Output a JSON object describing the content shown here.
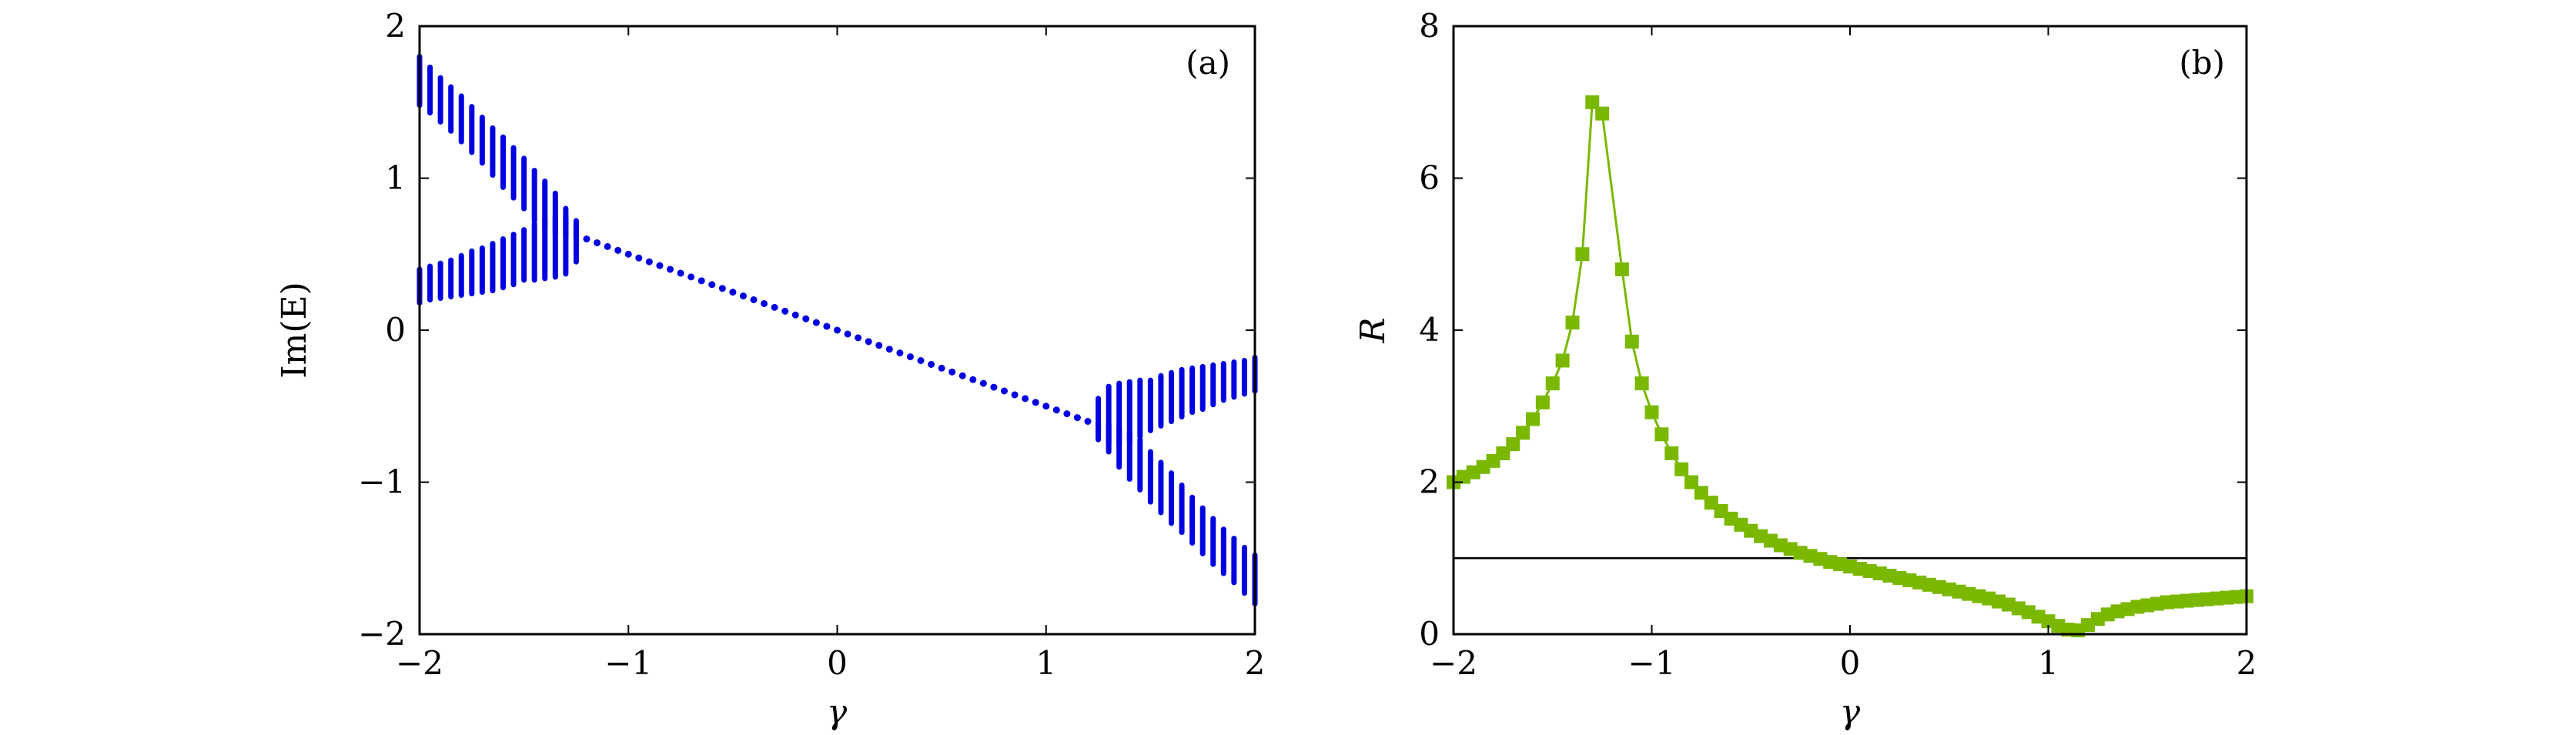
{
  "chart_data": [
    {
      "panel_label": "(a)",
      "type": "scatter",
      "xlabel": "γ",
      "ylabel": "Im(E)",
      "xlim": [
        -2,
        2
      ],
      "ylim": [
        -2,
        2
      ],
      "xticks": [
        -2,
        -1,
        0,
        1,
        2
      ],
      "yticks": [
        -2,
        -1,
        0,
        1,
        2
      ],
      "xtick_labels": [
        "−2",
        "−1",
        "0",
        "1",
        "2"
      ],
      "ytick_labels": [
        "−2",
        "−1",
        "0",
        "1",
        "2"
      ],
      "color": "#0000e0",
      "series": [
        {
          "style": "single-value dots",
          "x": [
            -1.2,
            -1.15,
            -1.1,
            -1.05,
            -1.0,
            -0.95,
            -0.9,
            -0.85,
            -0.8,
            -0.75,
            -0.7,
            -0.65,
            -0.6,
            -0.55,
            -0.5,
            -0.45,
            -0.4,
            -0.35,
            -0.3,
            -0.25,
            -0.2,
            -0.15,
            -0.1,
            -0.05,
            0.0,
            0.05,
            0.1,
            0.15,
            0.2,
            0.25,
            0.3,
            0.35,
            0.4,
            0.45,
            0.5,
            0.55,
            0.6,
            0.65,
            0.7,
            0.75,
            0.8,
            0.85,
            0.9,
            0.95,
            1.0,
            1.05,
            1.1,
            1.15,
            1.2
          ],
          "y": [
            0.6,
            0.575,
            0.55,
            0.525,
            0.5,
            0.475,
            0.45,
            0.425,
            0.4,
            0.375,
            0.35,
            0.325,
            0.3,
            0.275,
            0.25,
            0.225,
            0.2,
            0.175,
            0.15,
            0.125,
            0.1,
            0.075,
            0.05,
            0.025,
            0.0,
            -0.025,
            -0.05,
            -0.075,
            -0.1,
            -0.125,
            -0.15,
            -0.175,
            -0.2,
            -0.225,
            -0.25,
            -0.275,
            -0.3,
            -0.325,
            -0.35,
            -0.375,
            -0.4,
            -0.425,
            -0.45,
            -0.475,
            -0.5,
            -0.525,
            -0.55,
            -0.575,
            -0.6
          ]
        },
        {
          "style": "vertical spread (upper branch)",
          "x": [
            -2.0,
            -1.95,
            -1.9,
            -1.85,
            -1.8,
            -1.75,
            -1.7,
            -1.65,
            -1.6,
            -1.55,
            -1.5,
            -1.45,
            -1.4,
            -1.35,
            -1.3,
            -1.25
          ],
          "ymin": [
            1.48,
            1.43,
            1.37,
            1.31,
            1.24,
            1.17,
            1.1,
            1.02,
            0.94,
            0.87,
            0.8,
            0.72,
            0.68,
            0.64,
            0.62,
            0.6
          ],
          "ymax": [
            1.8,
            1.73,
            1.66,
            1.6,
            1.54,
            1.47,
            1.4,
            1.33,
            1.27,
            1.2,
            1.13,
            1.05,
            0.98,
            0.9,
            0.8,
            0.68
          ]
        },
        {
          "style": "vertical spread (lower branch)",
          "x": [
            -2.0,
            -1.95,
            -1.9,
            -1.85,
            -1.8,
            -1.75,
            -1.7,
            -1.65,
            -1.6,
            -1.55,
            -1.5,
            -1.45,
            -1.4,
            -1.35,
            -1.3,
            -1.25
          ],
          "ymin": [
            0.18,
            0.2,
            0.21,
            0.22,
            0.23,
            0.24,
            0.25,
            0.26,
            0.28,
            0.3,
            0.33,
            0.33,
            0.34,
            0.35,
            0.37,
            0.45
          ],
          "ymax": [
            0.4,
            0.42,
            0.44,
            0.46,
            0.49,
            0.52,
            0.54,
            0.57,
            0.6,
            0.63,
            0.66,
            0.7,
            0.73,
            0.75,
            0.75,
            0.72
          ]
        },
        {
          "style": "vertical spread (upper branch)",
          "x": [
            1.25,
            1.3,
            1.35,
            1.4,
            1.45,
            1.5,
            1.55,
            1.6,
            1.65,
            1.7,
            1.75,
            1.8,
            1.85,
            1.9,
            1.95,
            2.0
          ],
          "ymin": [
            -0.72,
            -0.75,
            -0.75,
            -0.73,
            -0.7,
            -0.66,
            -0.63,
            -0.6,
            -0.57,
            -0.54,
            -0.52,
            -0.49,
            -0.46,
            -0.44,
            -0.42,
            -0.4
          ],
          "ymax": [
            -0.45,
            -0.37,
            -0.35,
            -0.34,
            -0.33,
            -0.33,
            -0.3,
            -0.28,
            -0.26,
            -0.25,
            -0.24,
            -0.23,
            -0.22,
            -0.21,
            -0.2,
            -0.18
          ]
        },
        {
          "style": "vertical spread (lower branch)",
          "x": [
            1.25,
            1.3,
            1.35,
            1.4,
            1.45,
            1.5,
            1.55,
            1.6,
            1.65,
            1.7,
            1.75,
            1.8,
            1.85,
            1.9,
            1.95,
            2.0
          ],
          "ymin": [
            -0.68,
            -0.8,
            -0.9,
            -0.98,
            -1.05,
            -1.13,
            -1.2,
            -1.27,
            -1.33,
            -1.4,
            -1.47,
            -1.54,
            -1.6,
            -1.66,
            -1.73,
            -1.8
          ],
          "ymax": [
            -0.6,
            -0.62,
            -0.64,
            -0.68,
            -0.72,
            -0.8,
            -0.87,
            -0.94,
            -1.02,
            -1.1,
            -1.17,
            -1.24,
            -1.31,
            -1.37,
            -1.43,
            -1.48
          ]
        }
      ]
    },
    {
      "panel_label": "(b)",
      "type": "line",
      "xlabel": "γ",
      "ylabel": "R",
      "xlim": [
        -2,
        2
      ],
      "ylim": [
        0,
        8
      ],
      "xticks": [
        -2,
        -1,
        0,
        1,
        2
      ],
      "yticks": [
        0,
        2,
        4,
        6,
        8
      ],
      "xtick_labels": [
        "−2",
        "−1",
        "0",
        "1",
        "2"
      ],
      "ytick_labels": [
        "0",
        "2",
        "4",
        "6",
        "8"
      ],
      "color": "#7ab800",
      "reference_line_y": 1,
      "series": [
        {
          "marker": "square",
          "x": [
            -2.0,
            -1.95,
            -1.9,
            -1.85,
            -1.8,
            -1.75,
            -1.7,
            -1.65,
            -1.6,
            -1.55,
            -1.5,
            -1.45,
            -1.4,
            -1.35,
            -1.3,
            -1.25,
            -1.15,
            -1.1,
            -1.05,
            -1.0,
            -0.95,
            -0.9,
            -0.85,
            -0.8,
            -0.75,
            -0.7,
            -0.65,
            -0.6,
            -0.55,
            -0.5,
            -0.45,
            -0.4,
            -0.35,
            -0.3,
            -0.25,
            -0.2,
            -0.15,
            -0.1,
            -0.05,
            0.0,
            0.05,
            0.1,
            0.15,
            0.2,
            0.25,
            0.3,
            0.35,
            0.4,
            0.45,
            0.5,
            0.55,
            0.6,
            0.65,
            0.7,
            0.75,
            0.8,
            0.85,
            0.9,
            0.95,
            1.0,
            1.05,
            1.1,
            1.15,
            1.2,
            1.25,
            1.3,
            1.35,
            1.4,
            1.45,
            1.5,
            1.55,
            1.6,
            1.65,
            1.7,
            1.75,
            1.8,
            1.85,
            1.9,
            1.95,
            2.0
          ],
          "y": [
            2.0,
            2.07,
            2.13,
            2.2,
            2.28,
            2.38,
            2.5,
            2.65,
            2.83,
            3.05,
            3.3,
            3.6,
            4.1,
            5.0,
            7.0,
            6.85,
            4.8,
            3.85,
            3.3,
            2.92,
            2.63,
            2.38,
            2.17,
            2.0,
            1.86,
            1.73,
            1.62,
            1.52,
            1.44,
            1.36,
            1.29,
            1.23,
            1.17,
            1.12,
            1.07,
            1.03,
            0.99,
            0.95,
            0.92,
            0.89,
            0.86,
            0.83,
            0.8,
            0.77,
            0.74,
            0.71,
            0.68,
            0.65,
            0.62,
            0.59,
            0.56,
            0.53,
            0.5,
            0.47,
            0.43,
            0.39,
            0.34,
            0.29,
            0.23,
            0.17,
            0.11,
            0.06,
            0.05,
            0.12,
            0.2,
            0.26,
            0.3,
            0.33,
            0.36,
            0.38,
            0.4,
            0.42,
            0.43,
            0.44,
            0.45,
            0.46,
            0.47,
            0.48,
            0.49,
            0.5
          ]
        }
      ]
    }
  ]
}
